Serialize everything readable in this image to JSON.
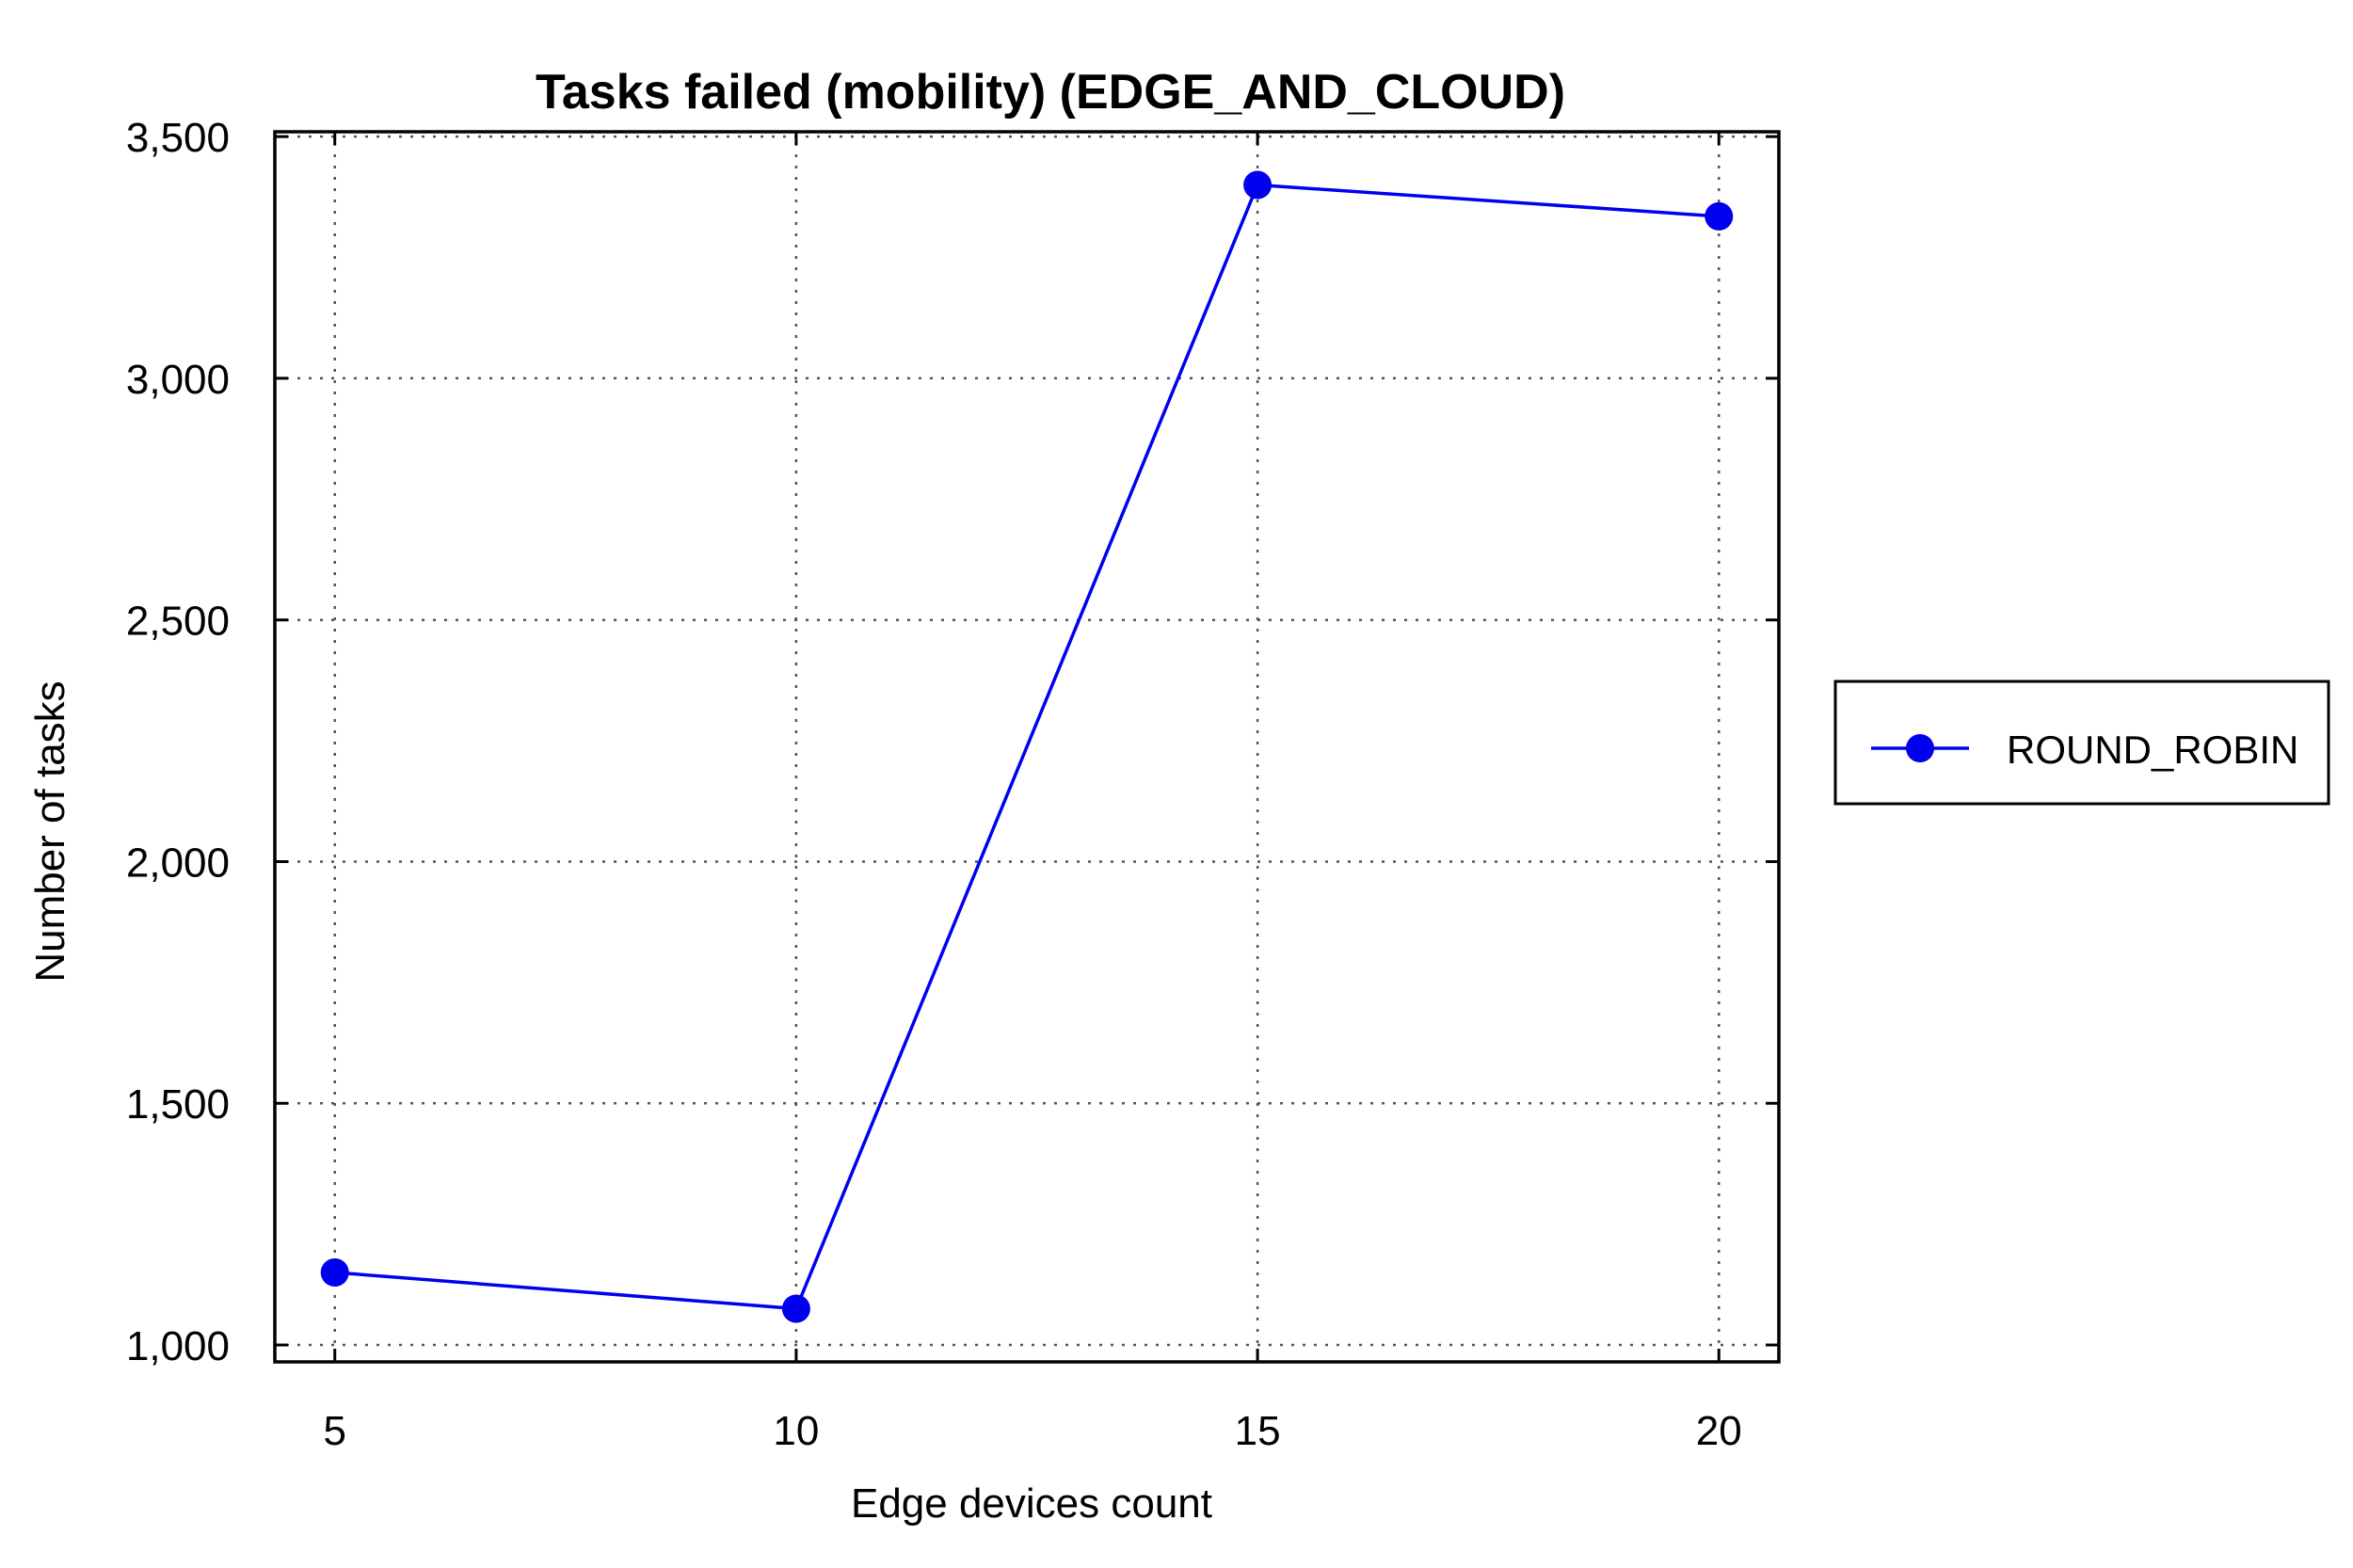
{
  "chart_data": {
    "type": "line",
    "title": "Tasks failed (mobility) (EDGE_AND_CLOUD)",
    "xlabel": "Edge devices count",
    "ylabel": "Number of tasks",
    "x": [
      5,
      10,
      15,
      20
    ],
    "x_tick_labels": [
      "5",
      "10",
      "15",
      "20"
    ],
    "xlim": [
      4.35,
      20.65
    ],
    "ylim": [
      965,
      3510
    ],
    "y_ticks": [
      1000,
      1500,
      2000,
      2500,
      3000,
      3500
    ],
    "y_tick_labels": [
      "1,000",
      "1,500",
      "2,000",
      "2,500",
      "3,000",
      "3,500"
    ],
    "grid": true,
    "legend_position": "right",
    "series": [
      {
        "name": "ROUND_ROBIN",
        "color": "#0000ee",
        "marker": "circle",
        "values": [
          1150,
          1075,
          3400,
          3335
        ]
      }
    ]
  }
}
